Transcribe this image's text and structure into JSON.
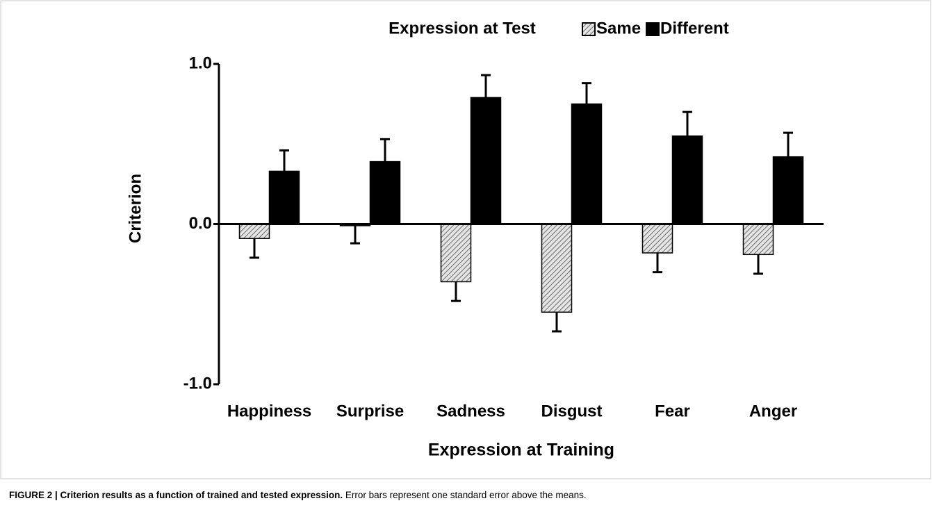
{
  "chart_data": {
    "type": "bar",
    "legend_title": "Expression at Test",
    "xlabel": "Expression at Training",
    "ylabel": "Criterion",
    "categories": [
      "Happiness",
      "Surprise",
      "Sadness",
      "Disgust",
      "Fear",
      "Anger"
    ],
    "series": [
      {
        "name": "Same",
        "color": "#9a9a9a",
        "hatch": true,
        "values": [
          -0.09,
          -0.01,
          -0.36,
          -0.55,
          -0.18,
          -0.19
        ],
        "errors": [
          0.12,
          0.11,
          0.12,
          0.12,
          0.12,
          0.12
        ]
      },
      {
        "name": "Different",
        "color": "#000000",
        "hatch": false,
        "values": [
          0.33,
          0.39,
          0.79,
          0.75,
          0.55,
          0.42
        ],
        "errors": [
          0.13,
          0.14,
          0.14,
          0.13,
          0.15,
          0.15
        ]
      }
    ],
    "ylim": [
      -1,
      1
    ],
    "yticks": [
      {
        "value": 1,
        "label": "1.0"
      },
      {
        "value": 0,
        "label": "0.0"
      },
      {
        "value": -1,
        "label": "-1.0"
      }
    ],
    "grid": false
  },
  "caption": {
    "title": "FIGURE 2 | Criterion results as a function of trained and tested expression.",
    "text": "Error bars represent one standard error above the means."
  }
}
